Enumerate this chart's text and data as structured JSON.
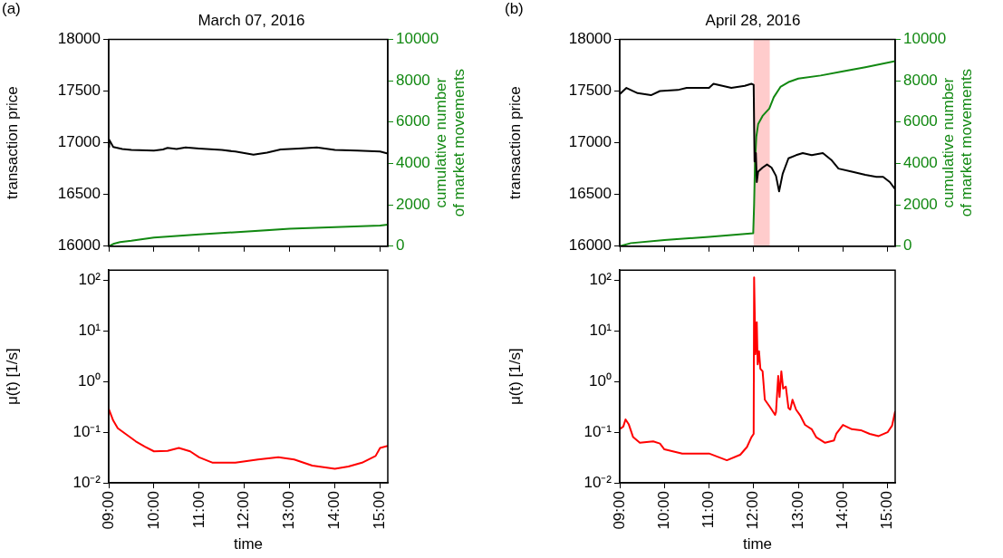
{
  "chart_data": [
    {
      "type": "line",
      "title": "March 07, 2016",
      "ylabel": "transaction price",
      "y2label": "cumulative number of market movements",
      "annotations": [
        "(a)"
      ],
      "xlim": [
        9,
        15.17
      ],
      "xticks": [
        {
          "value": 9,
          "label": null
        },
        {
          "value": 10,
          "label": null
        },
        {
          "value": 11,
          "label": null
        },
        {
          "value": 12,
          "label": null
        },
        {
          "value": 13,
          "label": null
        },
        {
          "value": 14,
          "label": null
        },
        {
          "value": 15,
          "label": null
        }
      ],
      "ylim": [
        16000,
        18000
      ],
      "yticks": [
        16000,
        16500,
        17000,
        17500,
        18000
      ],
      "y2lim": [
        0,
        10000
      ],
      "y2ticks": [
        0,
        2000,
        4000,
        6000,
        8000,
        10000
      ],
      "tick_labels": "y",
      "series": [
        {
          "color": "#000000",
          "x": [
            9,
            9.01,
            9.1,
            9.3,
            9.5,
            10,
            10.2,
            10.3,
            10.5,
            10.7,
            11,
            11.5,
            11.8,
            12.2,
            12.5,
            12.8,
            13.2,
            13.6,
            14,
            14.5,
            15,
            15.17
          ],
          "values": [
            16960,
            17030,
            16960,
            16940,
            16930,
            16925,
            16935,
            16950,
            16940,
            16955,
            16945,
            16930,
            16915,
            16885,
            16905,
            16935,
            16945,
            16955,
            16930,
            16925,
            16915,
            16895
          ]
        },
        {
          "color": "#118811",
          "axis": "y2",
          "x": [
            9,
            9.1,
            9.25,
            9.5,
            10,
            11,
            12,
            13,
            14,
            15,
            15.17
          ],
          "values": [
            0,
            110,
            200,
            265,
            420,
            576,
            700,
            840,
            920,
            1000,
            1040
          ]
        }
      ]
    },
    {
      "type": "line",
      "title": "April 28, 2016",
      "ylabel": "transaction price",
      "y2label": "cumulative number of market movements",
      "annotations": [
        "(b)"
      ],
      "xlim": [
        9,
        15.17
      ],
      "xticks": [
        {
          "value": 9,
          "label": null
        },
        {
          "value": 10,
          "label": null
        },
        {
          "value": 11,
          "label": null
        },
        {
          "value": 12,
          "label": null
        },
        {
          "value": 13,
          "label": null
        },
        {
          "value": 14,
          "label": null
        },
        {
          "value": 15,
          "label": null
        }
      ],
      "ylim": [
        16000,
        18000
      ],
      "yticks": [
        16000,
        16500,
        17000,
        17500,
        18000
      ],
      "y2lim": [
        0,
        10000
      ],
      "y2ticks": [
        0,
        2000,
        4000,
        6000,
        8000,
        10000
      ],
      "tick_labels": "y",
      "bands": [
        {
          "axis": "x",
          "from": 12,
          "to": 12.36,
          "color": "#ffcccc"
        }
      ],
      "series": [
        {
          "color": "#000000",
          "x": [
            9,
            9.15,
            9.4,
            9.7,
            9.9,
            10.3,
            10.5,
            11,
            11.1,
            11.5,
            11.8,
            11.95,
            12,
            12.02,
            12.05,
            12.07,
            12.1,
            12.2,
            12.3,
            12.4,
            12.5,
            12.57,
            12.65,
            12.78,
            12.95,
            13.1,
            13.3,
            13.55,
            13.75,
            13.9,
            14.2,
            14.5,
            14.75,
            14.9,
            15.05,
            15.17
          ],
          "values": [
            17470,
            17530,
            17480,
            17460,
            17500,
            17510,
            17530,
            17530,
            17570,
            17530,
            17550,
            17570,
            17560,
            16820,
            16900,
            16620,
            16720,
            16760,
            16790,
            16760,
            16680,
            16530,
            16700,
            16850,
            16880,
            16900,
            16880,
            16900,
            16830,
            16750,
            16720,
            16690,
            16670,
            16670,
            16620,
            16550
          ]
        },
        {
          "color": "#118811",
          "axis": "y2",
          "x": [
            9,
            9.25,
            10,
            11,
            11.99,
            12,
            12.01,
            12.03,
            12.06,
            12.1,
            12.2,
            12.35,
            12.45,
            12.6,
            12.8,
            13,
            13.5,
            14,
            14.5,
            15.17
          ],
          "values": [
            0,
            150,
            300,
            450,
            630,
            630,
            2000,
            4000,
            5300,
            5900,
            6300,
            6650,
            7200,
            7700,
            7950,
            8100,
            8250,
            8450,
            8650,
            8950
          ]
        }
      ]
    },
    {
      "type": "line",
      "xlabel": "time",
      "ylabel": "μ(t) [1/s]",
      "log": true,
      "xlim": [
        9,
        15.17
      ],
      "xticks": [
        {
          "value": 9,
          "label": "09:00"
        },
        {
          "value": 10,
          "label": "10:00"
        },
        {
          "value": 11,
          "label": "11:00"
        },
        {
          "value": 12,
          "label": "12:00"
        },
        {
          "value": 13,
          "label": "13:00"
        },
        {
          "value": 14,
          "label": "14:00"
        },
        {
          "value": 15,
          "label": "15:00"
        }
      ],
      "ylim": [
        0.01,
        160
      ],
      "yticks": [
        {
          "value": 0.01,
          "label": "10⁻²"
        },
        {
          "value": 0.1,
          "label": "10⁻¹"
        },
        {
          "value": 1,
          "label": "10⁰"
        },
        {
          "value": 10,
          "label": "10¹"
        },
        {
          "value": 100,
          "label": "10²"
        }
      ],
      "series": [
        {
          "color": "#ff0000",
          "x": [
            9,
            9.1,
            9.2,
            9.4,
            9.6,
            9.8,
            10,
            10.3,
            10.55,
            10.8,
            11,
            11.3,
            11.8,
            12.3,
            12.75,
            13.1,
            13.5,
            14,
            14.3,
            14.6,
            14.9,
            15,
            15.17
          ],
          "values": [
            0.29,
            0.17,
            0.12,
            0.089,
            0.066,
            0.052,
            0.042,
            0.043,
            0.049,
            0.042,
            0.032,
            0.025,
            0.025,
            0.029,
            0.032,
            0.029,
            0.022,
            0.019,
            0.021,
            0.025,
            0.034,
            0.049,
            0.054
          ]
        }
      ]
    },
    {
      "type": "line",
      "xlabel": "time",
      "ylabel": "μ(t) [1/s]",
      "log": true,
      "xlim": [
        9,
        15.17
      ],
      "xticks": [
        {
          "value": 9,
          "label": "09:00"
        },
        {
          "value": 10,
          "label": "10:00"
        },
        {
          "value": 11,
          "label": "11:00"
        },
        {
          "value": 12,
          "label": "12:00"
        },
        {
          "value": 13,
          "label": "13:00"
        },
        {
          "value": 14,
          "label": "14:00"
        },
        {
          "value": 15,
          "label": "15:00"
        }
      ],
      "ylim": [
        0.01,
        160
      ],
      "yticks": [
        {
          "value": 0.01,
          "label": "10⁻²"
        },
        {
          "value": 0.1,
          "label": "10⁻¹"
        },
        {
          "value": 1,
          "label": "10⁰"
        },
        {
          "value": 10,
          "label": "10¹"
        },
        {
          "value": 100,
          "label": "10²"
        }
      ],
      "series": [
        {
          "color": "#ff0000",
          "x": [
            9,
            9.08,
            9.13,
            9.2,
            9.3,
            9.45,
            9.75,
            9.9,
            10,
            10.4,
            11,
            11.4,
            11.7,
            11.85,
            11.95,
            12,
            12.01,
            12.04,
            12.07,
            12.09,
            12.12,
            12.15,
            12.2,
            12.25,
            12.35,
            12.48,
            12.5,
            12.55,
            12.58,
            12.62,
            12.66,
            12.72,
            12.78,
            12.82,
            12.87,
            12.95,
            13.05,
            13.15,
            13.3,
            13.4,
            13.6,
            13.8,
            13.85,
            14,
            14.2,
            14.4,
            14.6,
            14.8,
            15,
            15.1,
            15.17
          ],
          "values": [
            0.115,
            0.13,
            0.18,
            0.145,
            0.08,
            0.062,
            0.066,
            0.06,
            0.046,
            0.038,
            0.038,
            0.028,
            0.036,
            0.051,
            0.08,
            0.093,
            115,
            3.5,
            15,
            2.2,
            4,
            1.8,
            1.6,
            0.44,
            0.33,
            0.22,
            0.25,
            1.3,
            0.5,
            1.6,
            0.73,
            0.8,
            0.3,
            0.28,
            0.44,
            0.28,
            0.21,
            0.14,
            0.115,
            0.08,
            0.062,
            0.069,
            0.093,
            0.14,
            0.115,
            0.11,
            0.093,
            0.084,
            0.1,
            0.135,
            0.26
          ]
        }
      ]
    }
  ]
}
